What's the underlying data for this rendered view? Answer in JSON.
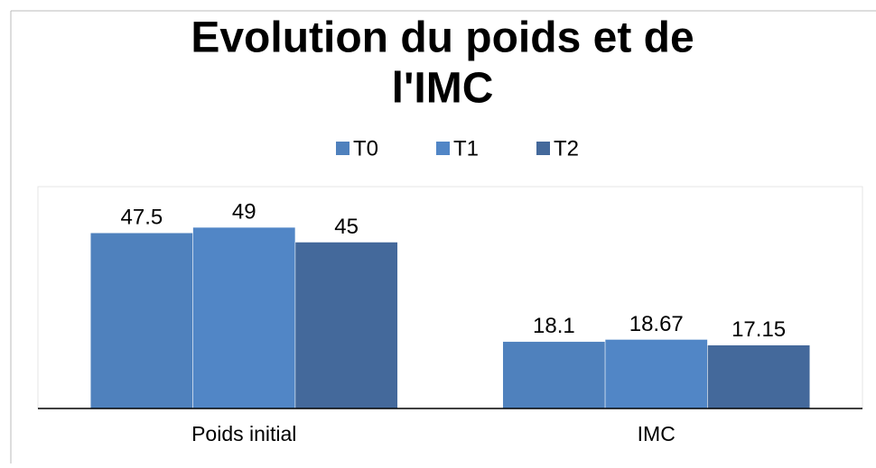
{
  "chart_data": {
    "type": "bar",
    "title_lines": [
      "Evolution du poids et de",
      "l'IMC"
    ],
    "categories": [
      "Poids initial",
      "IMC"
    ],
    "series": [
      {
        "name": "T0",
        "color": "#4f81bd",
        "values": [
          47.5,
          18.1
        ],
        "value_labels": [
          "47.5",
          "18.1"
        ]
      },
      {
        "name": "T1",
        "color": "#5186c6",
        "values": [
          49,
          18.67
        ],
        "value_labels": [
          "49",
          "18.67"
        ]
      },
      {
        "name": "T2",
        "color": "#44699b",
        "values": [
          45,
          17.15
        ],
        "value_labels": [
          "45",
          "17.15"
        ]
      }
    ],
    "ylim": [
      0,
      60
    ],
    "legend": "top"
  }
}
